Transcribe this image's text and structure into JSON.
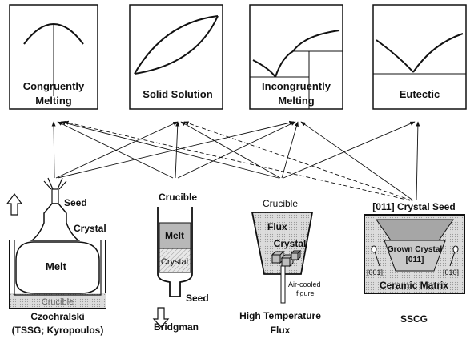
{
  "phase_diagrams": [
    {
      "name": "Congruently Melting",
      "line1": "Congruently",
      "line2": "Melting"
    },
    {
      "name": "Solid Solution",
      "line1": "Solid Solution",
      "line2": ""
    },
    {
      "name": "Incongruently Melting",
      "line1": "Incongruently",
      "line2": "Melting"
    },
    {
      "name": "Eutectic",
      "line1": "Eutectic",
      "line2": ""
    }
  ],
  "methods": {
    "czochralski": {
      "title": "Czochralski",
      "subtitle": "(TSSG; Kyropoulos)",
      "seed": "Seed",
      "crystal": "Crystal",
      "melt": "Melt",
      "crucible": "Crucible"
    },
    "bridgman": {
      "title": "Bridgman",
      "crucible": "Crucible",
      "melt": "Melt",
      "crystal": "Crystal",
      "seed": "Seed"
    },
    "flux": {
      "title_line1": "High Temperature",
      "title_line2": "Flux",
      "crucible": "Crucible",
      "flux": "Flux",
      "crystal": "Crystal",
      "air_line1": "Air-cooled",
      "air_line2": "figure"
    },
    "sscg": {
      "title": "SSCG",
      "seed_label": "[011] Crystal Seed",
      "grown_line1": "Grown Crystal",
      "grown_line2": "[011]",
      "dir_left": "[001]",
      "dir_right": "[010]",
      "matrix": "Ceramic Matrix"
    }
  },
  "colors": {
    "line": "#111111",
    "fill_gray": "#d9d9d9",
    "fill_dark": "#a6a6a6"
  }
}
